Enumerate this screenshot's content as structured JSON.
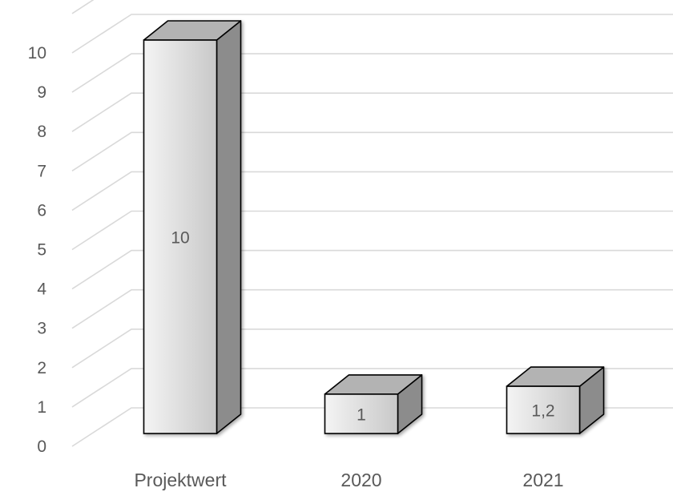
{
  "chart_data": {
    "type": "bar",
    "style": "3d-column",
    "categories": [
      "Projektwert",
      "2020",
      "2021"
    ],
    "values": [
      10,
      1,
      1.2
    ],
    "data_labels": [
      "10",
      "1",
      "1,2"
    ],
    "y_ticks": [
      "0",
      "1",
      "2",
      "3",
      "4",
      "5",
      "6",
      "7",
      "8",
      "9",
      "10"
    ],
    "ylim": [
      0,
      11
    ],
    "title": "",
    "xlabel": "",
    "ylabel": "",
    "grid": true,
    "legend": "none",
    "colors": {
      "bar_front_light": "#f4f4f4",
      "bar_front_dark": "#c8c8c8",
      "bar_side": "#8c8c8c",
      "bar_top": "#b3b3b3",
      "bar_outline": "#000000",
      "grid": "#d9d9d9",
      "text": "#595959"
    }
  }
}
